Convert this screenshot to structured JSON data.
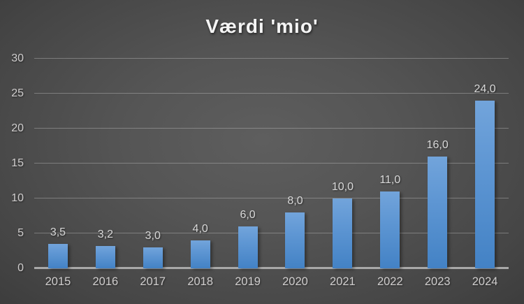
{
  "chart_data": {
    "type": "bar",
    "title": "Værdi 'mio'",
    "categories": [
      "2015",
      "2016",
      "2017",
      "2018",
      "2019",
      "2020",
      "2021",
      "2022",
      "2023",
      "2024"
    ],
    "values": [
      3.5,
      3.2,
      3.0,
      4.0,
      6.0,
      8.0,
      10.0,
      11.0,
      16.0,
      24.0
    ],
    "value_labels": [
      "3,5",
      "3,2",
      "3,0",
      "4,0",
      "6,0",
      "8,0",
      "10,0",
      "11,0",
      "16,0",
      "24,0"
    ],
    "xlabel": "",
    "ylabel": "",
    "ylim": [
      0,
      30
    ],
    "yticks": [
      0,
      5,
      10,
      15,
      20,
      25,
      30
    ],
    "ytick_labels": [
      "0",
      "5",
      "10",
      "15",
      "20",
      "25",
      "30"
    ],
    "grid": "horizontal",
    "legend_position": "none",
    "colors": {
      "bar_top": "#72a4db",
      "bar_bottom": "#4382c5",
      "background_center": "#5e5e5e",
      "background_edge": "#262626",
      "gridline": "#cdcdcd",
      "axis_line": "#a9a9a9",
      "title_text": "#f5f5f5",
      "tick_text": "#d0cece",
      "data_label_text": "#d9d9d9"
    }
  }
}
